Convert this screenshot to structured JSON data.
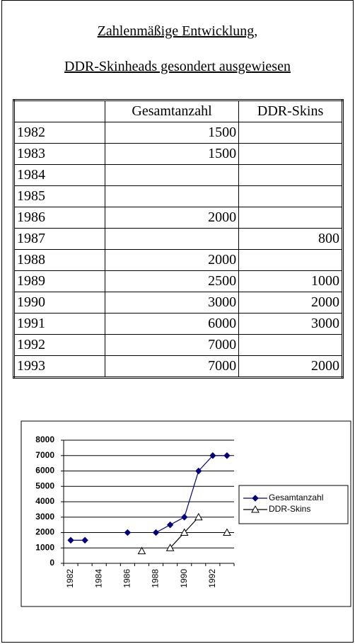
{
  "title_lines": [
    "Zahlenmäßige Entwicklung,",
    "DDR-Skinheads gesondert ausgewiesen"
  ],
  "table": {
    "header": [
      "Gesamtanzahl",
      "DDR-Skins"
    ],
    "rows": [
      [
        "1982",
        1500,
        null
      ],
      [
        "1983",
        1500,
        null
      ],
      [
        "1984",
        null,
        null
      ],
      [
        "1985",
        null,
        null
      ],
      [
        "1986",
        2000,
        null
      ],
      [
        "1987",
        null,
        800
      ],
      [
        "1988",
        2000,
        null
      ],
      [
        "1989",
        2500,
        1000
      ],
      [
        "1990",
        3000,
        2000
      ],
      [
        "1991",
        6000,
        3000
      ],
      [
        "1992",
        7000,
        null
      ],
      [
        "1993",
        7000,
        2000
      ]
    ]
  },
  "chart_data": {
    "type": "line",
    "categories": [
      "1982",
      null,
      "1984",
      null,
      "1986",
      null,
      "1988",
      null,
      "1990",
      null,
      "1992",
      null
    ],
    "series": [
      {
        "name": "Gesamtanzahl",
        "color": "#000080",
        "marker": "diamond",
        "values": [
          1500,
          1500,
          null,
          null,
          2000,
          null,
          2000,
          2500,
          3000,
          6000,
          7000,
          7000
        ]
      },
      {
        "name": "DDR-Skins",
        "color": "#000000",
        "marker": "triangle",
        "values": [
          null,
          null,
          null,
          null,
          null,
          800,
          null,
          1000,
          2000,
          3000,
          null,
          2000
        ]
      }
    ],
    "ylim": [
      0,
      8000
    ],
    "yticks": [
      0,
      1000,
      2000,
      3000,
      4000,
      5000,
      6000,
      7000,
      8000
    ],
    "grid": true,
    "legend": "right"
  }
}
